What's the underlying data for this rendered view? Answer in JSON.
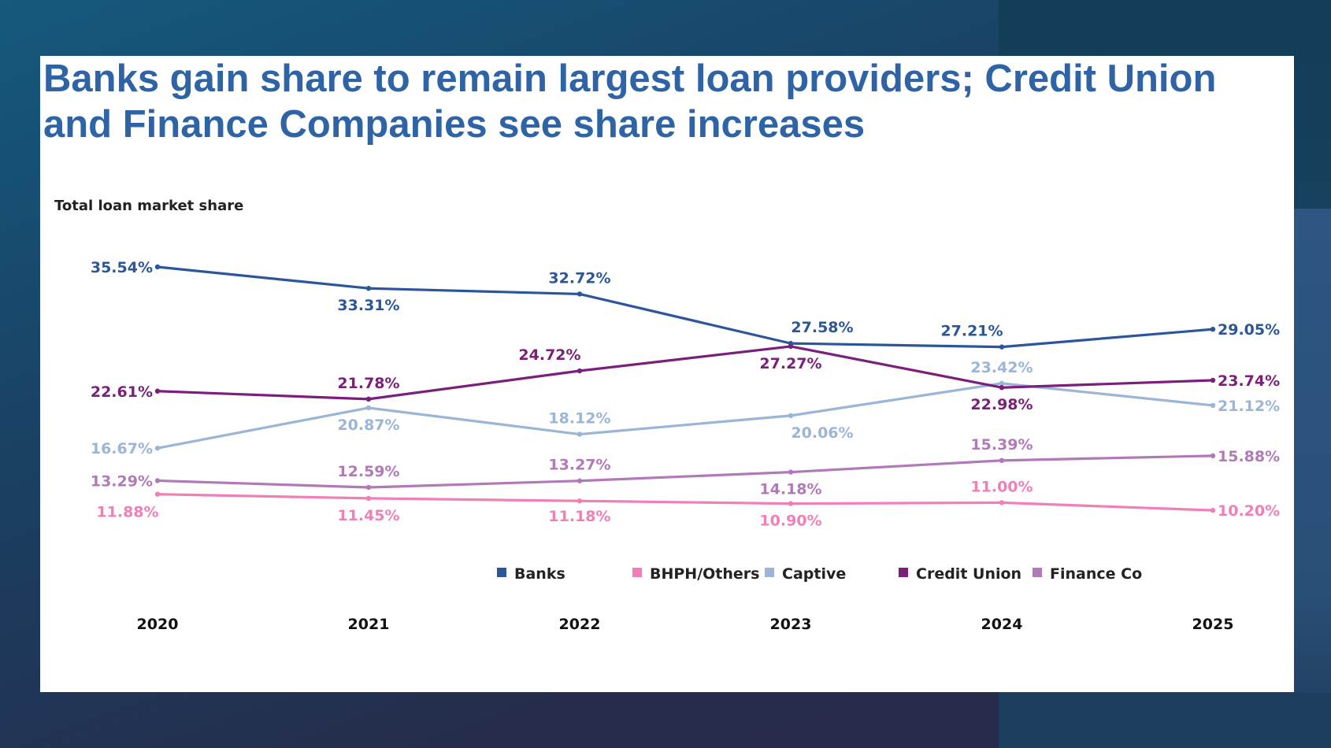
{
  "page": {
    "title": "Banks gain share to remain largest loan providers; Credit Union and Finance Companies see share increases"
  },
  "chart_data": {
    "type": "line",
    "title": "Banks gain share to remain largest loan providers; Credit Union and Finance Companies see share increases",
    "ylabel": "Total loan market share",
    "xlabel": "",
    "categories": [
      "2020",
      "2021",
      "2022",
      "2023",
      "2024",
      "2025"
    ],
    "ylim": [
      8,
      38
    ],
    "grid": false,
    "legend_position": "bottom",
    "series": [
      {
        "name": "Banks",
        "color": "#2b579a",
        "values": [
          35.54,
          33.31,
          32.72,
          27.58,
          27.21,
          29.05
        ],
        "labels": [
          "35.54%",
          "33.31%",
          "32.72%",
          "27.58%",
          "27.21%",
          "29.05%"
        ]
      },
      {
        "name": "BHPH/Others",
        "color": "#f07fb8",
        "values": [
          11.88,
          11.45,
          11.18,
          10.9,
          11.0,
          10.2
        ],
        "labels": [
          "11.88%",
          "11.45%",
          "11.18%",
          "10.90%",
          "11.00%",
          "10.20%"
        ]
      },
      {
        "name": "Captive",
        "color": "#9ab5d8",
        "values": [
          16.67,
          20.87,
          18.12,
          20.06,
          23.42,
          21.12
        ],
        "labels": [
          "16.67%",
          "20.87%",
          "18.12%",
          "20.06%",
          "23.42%",
          "21.12%"
        ]
      },
      {
        "name": "Credit Union",
        "color": "#7a1f7a",
        "values": [
          22.61,
          21.78,
          24.72,
          27.27,
          22.98,
          23.74
        ],
        "labels": [
          "22.61%",
          "21.78%",
          "24.72%",
          "27.27%",
          "22.98%",
          "23.74%"
        ]
      },
      {
        "name": "Finance Co",
        "color": "#b279b8",
        "values": [
          13.29,
          12.59,
          13.27,
          14.18,
          15.39,
          15.88
        ],
        "labels": [
          "13.29%",
          "12.59%",
          "13.27%",
          "14.18%",
          "15.39%",
          "15.88%"
        ]
      }
    ]
  }
}
